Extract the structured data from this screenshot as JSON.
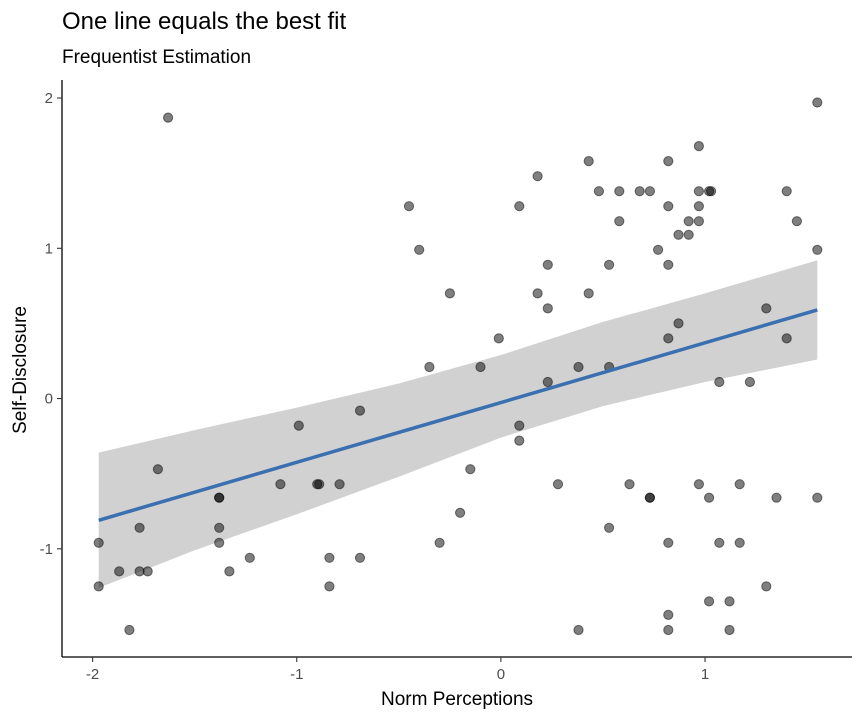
{
  "chart_data": {
    "type": "scatter",
    "title": "One line equals the best fit",
    "subtitle": "Frequentist Estimation",
    "xlabel": "Norm Perceptions",
    "ylabel": "Self-Disclosure",
    "xlim": [
      -2.15,
      1.72
    ],
    "ylim": [
      -1.72,
      2.12
    ],
    "xticks": [
      -2,
      -1,
      0,
      1
    ],
    "xtick_labels": [
      "-2",
      "-1",
      "0",
      "1"
    ],
    "yticks": [
      -1,
      0,
      1,
      2
    ],
    "ytick_labels": [
      "-1",
      "0",
      "1",
      "2"
    ],
    "grid": false,
    "points": [
      {
        "x": -1.63,
        "y": 1.87
      },
      {
        "x": 1.55,
        "y": 1.97
      },
      {
        "x": 0.43,
        "y": 1.58
      },
      {
        "x": 0.82,
        "y": 1.58
      },
      {
        "x": 0.97,
        "y": 1.68
      },
      {
        "x": 0.18,
        "y": 1.48
      },
      {
        "x": 0.48,
        "y": 1.38
      },
      {
        "x": 0.58,
        "y": 1.38
      },
      {
        "x": 0.68,
        "y": 1.38
      },
      {
        "x": 0.73,
        "y": 1.38
      },
      {
        "x": 0.97,
        "y": 1.38
      },
      {
        "x": 1.02,
        "y": 1.38
      },
      {
        "x": 1.03,
        "y": 1.38
      },
      {
        "x": 1.4,
        "y": 1.38
      },
      {
        "x": -0.45,
        "y": 1.28
      },
      {
        "x": 0.09,
        "y": 1.28
      },
      {
        "x": 0.82,
        "y": 1.28
      },
      {
        "x": 0.97,
        "y": 1.28
      },
      {
        "x": 0.58,
        "y": 1.18
      },
      {
        "x": 0.92,
        "y": 1.18
      },
      {
        "x": 0.97,
        "y": 1.18
      },
      {
        "x": 1.45,
        "y": 1.18
      },
      {
        "x": 0.87,
        "y": 1.09
      },
      {
        "x": 0.92,
        "y": 1.09
      },
      {
        "x": -0.4,
        "y": 0.99
      },
      {
        "x": 0.77,
        "y": 0.99
      },
      {
        "x": 1.55,
        "y": 0.99
      },
      {
        "x": 0.23,
        "y": 0.89
      },
      {
        "x": 0.53,
        "y": 0.89
      },
      {
        "x": 0.82,
        "y": 0.89
      },
      {
        "x": -0.25,
        "y": 0.7
      },
      {
        "x": 0.18,
        "y": 0.7
      },
      {
        "x": 0.43,
        "y": 0.7
      },
      {
        "x": 0.23,
        "y": 0.6
      },
      {
        "x": 1.3,
        "y": 0.6
      },
      {
        "x": 0.87,
        "y": 0.5
      },
      {
        "x": -0.01,
        "y": 0.4
      },
      {
        "x": 0.82,
        "y": 0.4
      },
      {
        "x": 1.4,
        "y": 0.4
      },
      {
        "x": -0.35,
        "y": 0.21
      },
      {
        "x": -0.1,
        "y": 0.21
      },
      {
        "x": 0.38,
        "y": 0.21
      },
      {
        "x": 0.53,
        "y": 0.21
      },
      {
        "x": 0.23,
        "y": 0.11
      },
      {
        "x": 1.07,
        "y": 0.11
      },
      {
        "x": 1.22,
        "y": 0.11
      },
      {
        "x": -0.69,
        "y": -0.08
      },
      {
        "x": -0.99,
        "y": -0.18
      },
      {
        "x": 0.09,
        "y": -0.18
      },
      {
        "x": 0.09,
        "y": -0.28
      },
      {
        "x": -1.68,
        "y": -0.47
      },
      {
        "x": -0.15,
        "y": -0.47
      },
      {
        "x": -1.08,
        "y": -0.57
      },
      {
        "x": -0.89,
        "y": -0.57
      },
      {
        "x": -0.9,
        "y": -0.57
      },
      {
        "x": -0.79,
        "y": -0.57
      },
      {
        "x": 0.28,
        "y": -0.57
      },
      {
        "x": 0.63,
        "y": -0.57
      },
      {
        "x": 0.97,
        "y": -0.57
      },
      {
        "x": 1.17,
        "y": -0.57
      },
      {
        "x": -1.38,
        "y": -0.66
      },
      {
        "x": -1.38,
        "y": -0.66
      },
      {
        "x": 0.73,
        "y": -0.66
      },
      {
        "x": 0.73,
        "y": -0.66
      },
      {
        "x": 1.02,
        "y": -0.66
      },
      {
        "x": 1.35,
        "y": -0.66
      },
      {
        "x": 1.55,
        "y": -0.66
      },
      {
        "x": -0.2,
        "y": -0.76
      },
      {
        "x": -1.77,
        "y": -0.86
      },
      {
        "x": -1.38,
        "y": -0.86
      },
      {
        "x": 0.53,
        "y": -0.86
      },
      {
        "x": -1.97,
        "y": -0.96
      },
      {
        "x": -1.38,
        "y": -0.96
      },
      {
        "x": -0.3,
        "y": -0.96
      },
      {
        "x": 0.82,
        "y": -0.96
      },
      {
        "x": 1.07,
        "y": -0.96
      },
      {
        "x": 1.17,
        "y": -0.96
      },
      {
        "x": -1.23,
        "y": -1.06
      },
      {
        "x": -0.84,
        "y": -1.06
      },
      {
        "x": -0.69,
        "y": -1.06
      },
      {
        "x": -1.87,
        "y": -1.15
      },
      {
        "x": -1.77,
        "y": -1.15
      },
      {
        "x": -1.73,
        "y": -1.15
      },
      {
        "x": -1.33,
        "y": -1.15
      },
      {
        "x": -1.97,
        "y": -1.25
      },
      {
        "x": -0.84,
        "y": -1.25
      },
      {
        "x": 1.3,
        "y": -1.25
      },
      {
        "x": 1.02,
        "y": -1.35
      },
      {
        "x": 1.12,
        "y": -1.35
      },
      {
        "x": 0.82,
        "y": -1.44
      },
      {
        "x": -1.82,
        "y": -1.54
      },
      {
        "x": 0.38,
        "y": -1.54
      },
      {
        "x": 0.82,
        "y": -1.54
      },
      {
        "x": 1.12,
        "y": -1.54
      }
    ],
    "fit": {
      "x": [
        -1.97,
        1.55
      ],
      "y": [
        -0.81,
        0.59
      ]
    },
    "confidence_band": {
      "x": [
        -1.97,
        -1.5,
        -1.0,
        -0.5,
        0.0,
        0.5,
        1.0,
        1.55
      ],
      "upper": [
        -0.36,
        -0.21,
        -0.06,
        0.1,
        0.29,
        0.51,
        0.7,
        0.92
      ],
      "lower": [
        -1.26,
        -1.01,
        -0.77,
        -0.52,
        -0.26,
        -0.05,
        0.11,
        0.26
      ]
    },
    "colors": {
      "point": "#000000",
      "fit_line": "#3a6fb0",
      "band": "#b3b3b3"
    }
  }
}
